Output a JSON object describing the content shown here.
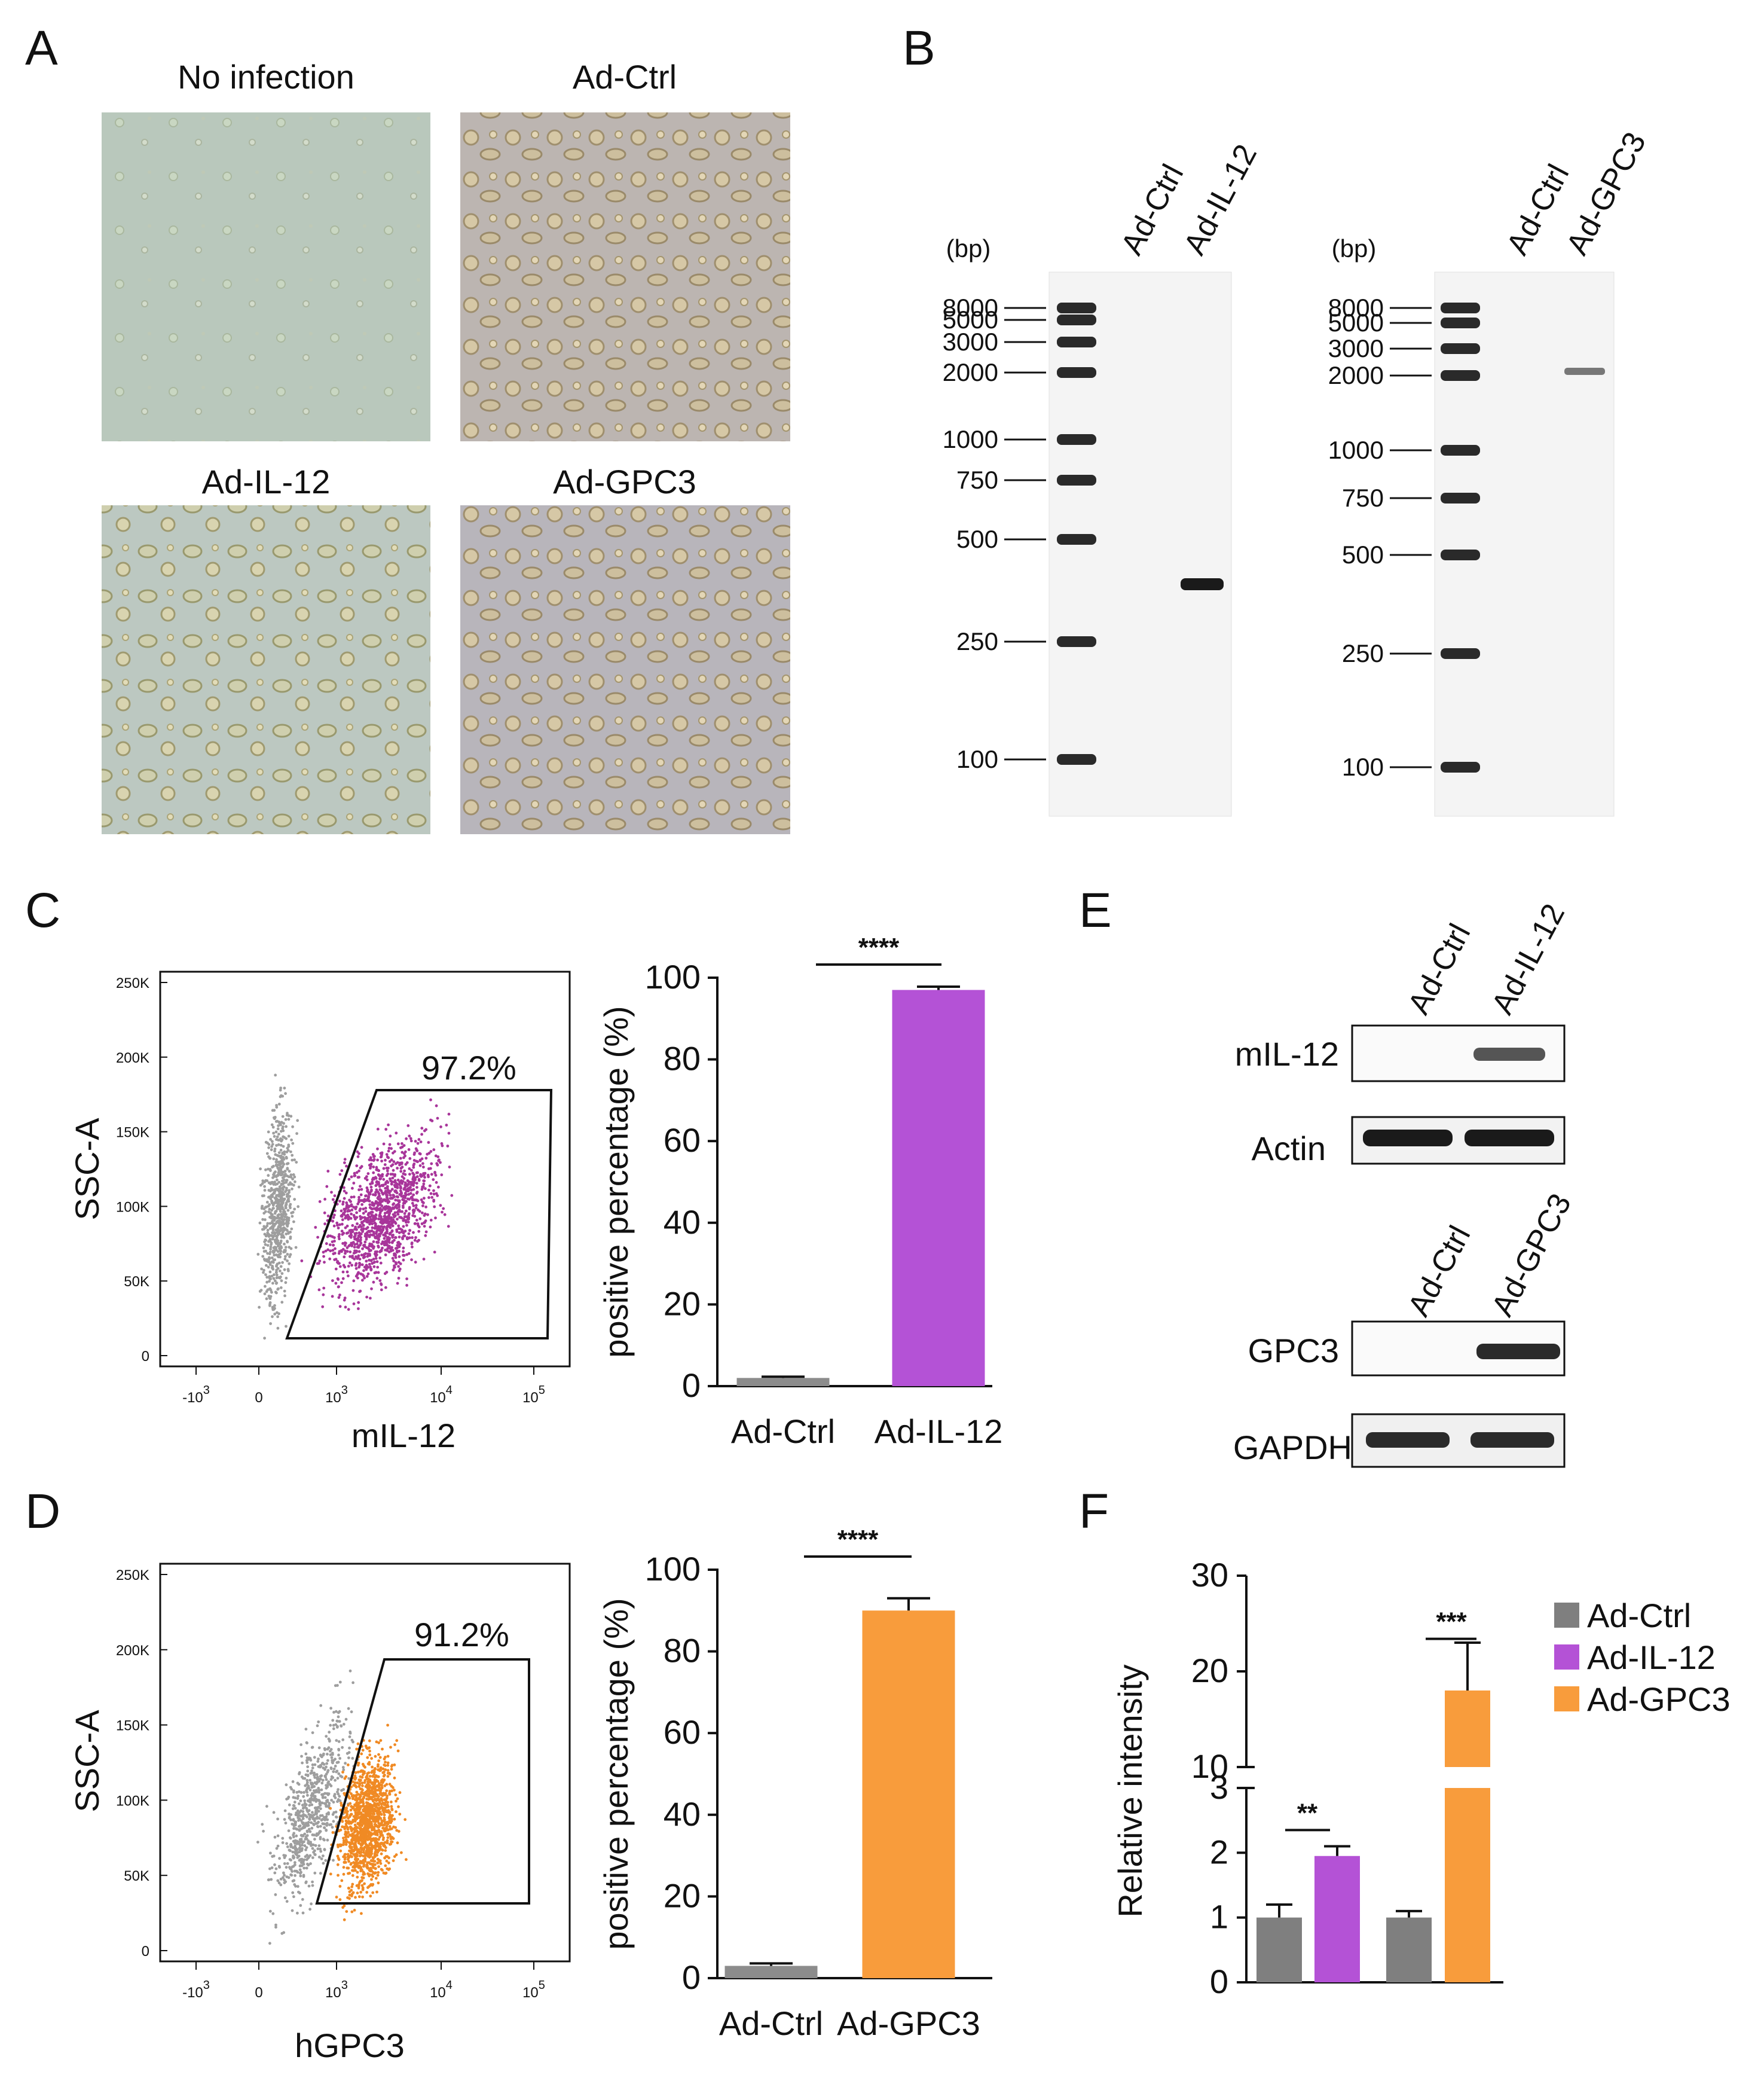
{
  "panels": {
    "A": "A",
    "B": "B",
    "C": "C",
    "D": "D",
    "E": "E",
    "F": "F"
  },
  "panel_a": {
    "titles": [
      "No infection",
      "Ad-Ctrl",
      "Ad-IL-12",
      "Ad-GPC3"
    ]
  },
  "panel_b": {
    "unit": "(bp)",
    "ladder": [
      "8000",
      "5000",
      "3000",
      "2000",
      "1000",
      "750",
      "500",
      "250",
      "100"
    ],
    "gel1_lanes": [
      "Ad-Ctrl",
      "Ad-IL-12"
    ],
    "gel2_lanes": [
      "Ad-Ctrl",
      "Ad-GPC3"
    ]
  },
  "panel_c": {
    "flow": {
      "gate_pct": "97.2%",
      "ylabel": "SSC-A",
      "xlabel": "mIL-12",
      "yticks": [
        "250K",
        "200K",
        "150K",
        "100K",
        "50K",
        "0"
      ],
      "xticks": [
        "-10",
        "0",
        "10",
        "10",
        "10"
      ],
      "xexp": [
        "3",
        "",
        "3",
        "4",
        "5"
      ],
      "point_color": "#a8359a"
    }
  },
  "panel_d": {
    "flow": {
      "gate_pct": "91.2%",
      "ylabel": "SSC-A",
      "xlabel": "hGPC3",
      "yticks": [
        "250K",
        "200K",
        "150K",
        "100K",
        "50K",
        "0"
      ],
      "xticks": [
        "-10",
        "0",
        "10",
        "10",
        "10"
      ],
      "xexp": [
        "3",
        "",
        "3",
        "4",
        "5"
      ],
      "point_color": "#f08a24"
    }
  },
  "panel_e": {
    "blot1_lanes": [
      "Ad-Ctrl",
      "Ad-IL-12"
    ],
    "blot2_lanes": [
      "Ad-Ctrl",
      "Ad-GPC3"
    ],
    "rows": [
      "mIL-12",
      "Actin",
      "GPC3",
      "GAPDH"
    ]
  },
  "chart_data": [
    {
      "type": "bar",
      "panel": "C",
      "categories": [
        "Ad-Ctrl",
        "Ad-IL-12"
      ],
      "values": [
        2,
        97
      ],
      "errors": [
        0.3,
        0.8
      ],
      "colors": [
        "#8c8c8c",
        "#b452d6"
      ],
      "ylabel": "positive percentage (%)",
      "yticks": [
        "0",
        "20",
        "40",
        "60",
        "80",
        "100"
      ],
      "ylim": [
        0,
        100
      ],
      "significance": "****"
    },
    {
      "type": "bar",
      "panel": "D",
      "categories": [
        "Ad-Ctrl",
        "Ad-GPC3"
      ],
      "values": [
        3,
        90
      ],
      "errors": [
        0.6,
        3
      ],
      "colors": [
        "#8c8c8c",
        "#f89c3c"
      ],
      "ylabel": "positive percentage (%)",
      "yticks": [
        "0",
        "20",
        "40",
        "60",
        "80",
        "100"
      ],
      "ylim": [
        0,
        100
      ],
      "significance": "****"
    },
    {
      "type": "bar",
      "panel": "F",
      "groups": [
        "Ad-IL-12",
        "Ad-GPC3"
      ],
      "series": [
        {
          "name": "Ad-Ctrl",
          "color": "#7f7f7f"
        },
        {
          "name": "Ad-IL-12",
          "color": "#b452d6"
        },
        {
          "name": "Ad-GPC3",
          "color": "#f89c3c"
        }
      ],
      "bars": [
        {
          "series": "Ad-Ctrl",
          "value": 1.0,
          "error": 0.2
        },
        {
          "series": "Ad-IL-12",
          "value": 1.95,
          "error": 0.15
        },
        {
          "series": "Ad-Ctrl",
          "value": 1.0,
          "error": 0.1
        },
        {
          "series": "Ad-GPC3",
          "value": 18,
          "error": 5
        }
      ],
      "ylabel": "Relative intensity",
      "yticks_lower": [
        "0",
        "1",
        "2",
        "3"
      ],
      "yticks_upper": [
        "10",
        "20",
        "30"
      ],
      "ylim": [
        0,
        30
      ],
      "axis_break": [
        3,
        10
      ],
      "significance": [
        "**",
        "***"
      ],
      "legend_placement": "right"
    }
  ]
}
